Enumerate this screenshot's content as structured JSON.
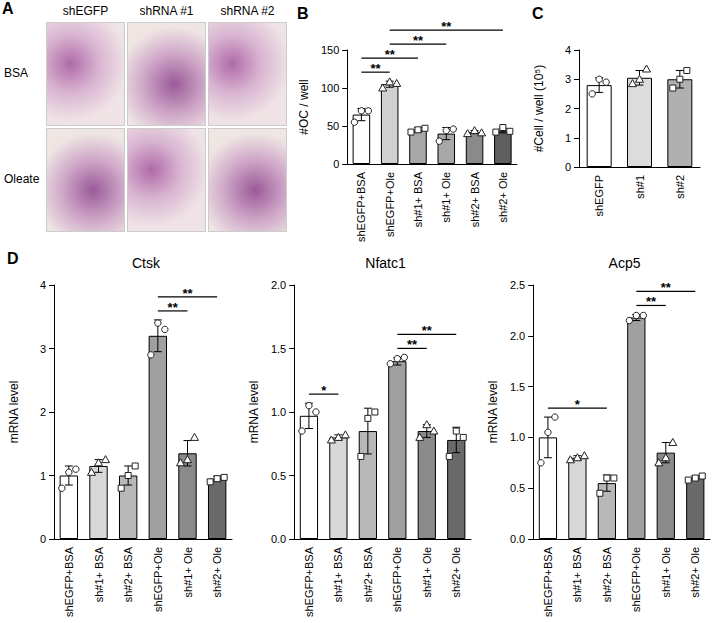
{
  "panel_a": {
    "panel": "A",
    "columns": [
      "shEGFP",
      "shRNA #1",
      "shRNA #2"
    ],
    "rows": [
      "BSA",
      "Oleate"
    ]
  },
  "chart_data": [
    {
      "type": "bar",
      "panel": "B",
      "y_label": "#OC / well",
      "categories": [
        "shEGFP+BSA",
        "shEGFP+Ole",
        "sh#1+ BSA",
        "sh#1+ Ole",
        "sh#2+ BSA",
        "sh#2+ Ole"
      ],
      "values": [
        65,
        105,
        45,
        40,
        42,
        44
      ],
      "errors": [
        8,
        4,
        3,
        8,
        2,
        3
      ],
      "points": [
        [
          55,
          70,
          70
        ],
        [
          100,
          108,
          106
        ],
        [
          42,
          45,
          47
        ],
        [
          30,
          44,
          46
        ],
        [
          40,
          44,
          41
        ],
        [
          42,
          48,
          43
        ]
      ],
      "colors": [
        "#ffffff",
        "#d0d0d0",
        "#a8a8a8",
        "#a8a8a8",
        "#8a8a8a",
        "#5e5e5e"
      ],
      "ylim": [
        0,
        150
      ],
      "yticks": [
        0,
        50,
        100,
        150
      ],
      "grid": false,
      "comparisons": [
        {
          "between": [
            "shEGFP+BSA",
            "shEGFP+Ole"
          ],
          "label": "**"
        },
        {
          "between": [
            "shEGFP+BSA",
            "sh#1+ BSA"
          ],
          "label": "**"
        },
        {
          "between": [
            "shEGFP+Ole",
            "sh#1+ Ole"
          ],
          "label": "**"
        },
        {
          "between": [
            "shEGFP+Ole",
            "sh#2+ Ole"
          ],
          "label": "**"
        }
      ]
    },
    {
      "type": "bar",
      "panel": "C",
      "y_label": "#Cell / well (10⁵)",
      "categories": [
        "shEGFP",
        "sh#1",
        "sh#2"
      ],
      "values": [
        2.8,
        3.05,
        3.0
      ],
      "errors": [
        0.25,
        0.25,
        0.3
      ],
      "points": [
        [
          2.5,
          3.0,
          2.9
        ],
        [
          2.85,
          3.0,
          3.35
        ],
        [
          2.7,
          3.0,
          3.3
        ]
      ],
      "colors": [
        "#ffffff",
        "#dcdcdc",
        "#b0b0b0"
      ],
      "ylim": [
        0,
        4
      ],
      "yticks": [
        0,
        1,
        2,
        3,
        4
      ],
      "grid": false,
      "comparisons": []
    },
    {
      "type": "bar",
      "panel": "D",
      "title": "Ctsk",
      "y_label": "mRNA level",
      "categories": [
        "shEGFP+BSA",
        "sh#1+ BSA",
        "sh#2+ BSA",
        "shEGFP+Ole",
        "sh#1+ Ole",
        "sh#2+ Ole"
      ],
      "values": [
        1.0,
        1.15,
        1.0,
        3.2,
        1.35,
        0.95
      ],
      "errors": [
        0.15,
        0.1,
        0.15,
        0.25,
        0.2,
        0.04
      ],
      "points": [
        [
          0.8,
          1.05,
          1.1
        ],
        [
          1.05,
          1.2,
          1.25
        ],
        [
          0.8,
          1.0,
          1.15
        ],
        [
          2.9,
          3.4,
          3.3
        ],
        [
          1.2,
          1.25,
          1.6
        ],
        [
          0.9,
          0.95,
          0.97
        ]
      ],
      "colors": [
        "#ffffff",
        "#d8d8d8",
        "#b8b8b8",
        "#a0a0a0",
        "#8a8a8a",
        "#6a6a6a"
      ],
      "ylim": [
        0,
        4
      ],
      "yticks": [
        0,
        1,
        2,
        3,
        4
      ],
      "grid": false,
      "comparisons": [
        {
          "between": [
            "shEGFP+Ole",
            "sh#1+ Ole"
          ],
          "label": "**"
        },
        {
          "between": [
            "shEGFP+Ole",
            "sh#2+ Ole"
          ],
          "label": "**"
        }
      ]
    },
    {
      "type": "bar",
      "title": "Nfatc1",
      "y_label": "mRNA level",
      "categories": [
        "shEGFP+BSA",
        "sh#1+ BSA",
        "sh#2+ BSA",
        "shEGFP+Ole",
        "sh#1+ Ole",
        "sh#2+ Ole"
      ],
      "values": [
        0.97,
        0.8,
        0.85,
        1.4,
        0.85,
        0.78
      ],
      "errors": [
        0.1,
        0.02,
        0.18,
        0.03,
        0.05,
        0.1
      ],
      "points": [
        [
          0.85,
          1.05,
          1.0
        ],
        [
          0.78,
          0.8,
          0.82
        ],
        [
          0.65,
          0.95,
          1.0
        ],
        [
          1.38,
          1.42,
          1.43
        ],
        [
          0.8,
          0.9,
          0.85
        ],
        [
          0.65,
          0.85,
          0.8
        ]
      ],
      "colors": [
        "#ffffff",
        "#d8d8d8",
        "#b8b8b8",
        "#a0a0a0",
        "#8a8a8a",
        "#6a6a6a"
      ],
      "ylim": [
        0,
        2
      ],
      "yticks": [
        {
          "value": 0,
          "label": "0.0"
        },
        0.5,
        {
          "value": 1,
          "label": "1.0"
        },
        1.5,
        {
          "value": 2,
          "label": "2.0"
        }
      ],
      "grid": false,
      "comparisons": [
        {
          "between": [
            "shEGFP+BSA",
            "sh#1+ BSA"
          ],
          "label": "*"
        },
        {
          "between": [
            "shEGFP+Ole",
            "sh#1+ Ole"
          ],
          "label": "**"
        },
        {
          "between": [
            "shEGFP+Ole",
            "sh#2+ Ole"
          ],
          "label": "**"
        }
      ]
    },
    {
      "type": "bar",
      "title": "Acp5",
      "y_label": "mRNA level",
      "categories": [
        "shEGFP+BSA",
        "sh#1+ BSA",
        "sh#2+ BSA",
        "shEGFP+Ole",
        "sh#1+ Ole",
        "sh#2+ Ole"
      ],
      "values": [
        1.0,
        0.8,
        0.55,
        2.18,
        0.85,
        0.6
      ],
      "errors": [
        0.2,
        0.02,
        0.08,
        0.03,
        0.1,
        0.02
      ],
      "points": [
        [
          0.75,
          1.05,
          1.2
        ],
        [
          0.78,
          0.8,
          0.82
        ],
        [
          0.45,
          0.6,
          0.6
        ],
        [
          2.15,
          2.2,
          2.2
        ],
        [
          0.75,
          0.8,
          0.95
        ],
        [
          0.58,
          0.6,
          0.62
        ]
      ],
      "colors": [
        "#ffffff",
        "#d8d8d8",
        "#b8b8b8",
        "#a0a0a0",
        "#8a8a8a",
        "#6a6a6a"
      ],
      "ylim": [
        0,
        2.5
      ],
      "yticks": [
        {
          "value": 0,
          "label": "0.0"
        },
        0.5,
        {
          "value": 1,
          "label": "1.0"
        },
        1.5,
        {
          "value": 2,
          "label": "2.0"
        },
        2.5
      ],
      "grid": false,
      "comparisons": [
        {
          "between": [
            "shEGFP+BSA",
            "sh#2+ BSA"
          ],
          "label": "*"
        },
        {
          "between": [
            "shEGFP+Ole",
            "sh#1+ Ole"
          ],
          "label": "**"
        },
        {
          "between": [
            "shEGFP+Ole",
            "sh#2+ Ole"
          ],
          "label": "**"
        }
      ]
    }
  ]
}
